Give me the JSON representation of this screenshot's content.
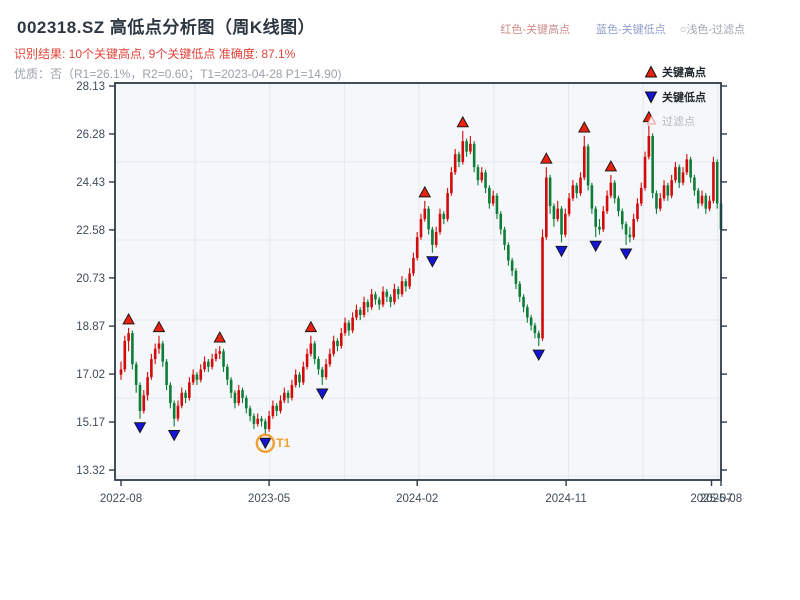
{
  "header": {
    "title": "002318.SZ 高低点分析图（周K线图）",
    "result_line": "识别结果: 10个关键高点, 9个关键低点  准确度: 87.1%",
    "quality_line": "优质：否（R1=26.1%，R2=0.60；T1=2023-04-28 P1=14.90)"
  },
  "top_legend": {
    "high_label": "红色-关键高点",
    "low_label": "蓝色-关键低点",
    "filter_label": "○浅色-过滤点"
  },
  "chart_legend": {
    "high": "关键高点",
    "low": "关键低点",
    "filter": "过滤点"
  },
  "annotation": {
    "t1_label": "T1"
  },
  "colors": {
    "up_candle": "#d20a0a",
    "down_candle": "#0d7d38",
    "key_high_marker": "#e8220f",
    "key_low_marker": "#1414d2",
    "filter_marker_fill": "#fdf0ef",
    "filter_marker_edge": "#e8a0a0",
    "annotation_orange": "#f0a030",
    "axis": "#2e3b49",
    "grid": "#e4e8ed",
    "plot_bg": "#f5f7fa",
    "tick_label": "#3f4c59"
  },
  "chart_data": {
    "type": "candlestick",
    "title": "002318.SZ 高低点分析图（周K线图）",
    "frequency": "weekly",
    "x_start": "2022-08",
    "x_end": "2025-08",
    "ylim": [
      13.32,
      28.13
    ],
    "y_ticks": [
      28.13,
      26.28,
      24.43,
      22.58,
      20.73,
      18.87,
      17.02,
      15.17,
      13.32
    ],
    "x_ticks": [
      {
        "label": "2022-08",
        "week": 0
      },
      {
        "label": "2023-05",
        "week": 39
      },
      {
        "label": "2024-02",
        "week": 78
      },
      {
        "label": "2024-11",
        "week": 117.2
      },
      {
        "label": "2025-07",
        "week": 155.5
      },
      {
        "label": "2025-08",
        "week": 158
      }
    ],
    "ohlc": [
      [
        17.0,
        17.5,
        16.8,
        17.2
      ],
      [
        17.2,
        18.5,
        17.1,
        18.3
      ],
      [
        18.3,
        18.8,
        17.9,
        18.6
      ],
      [
        18.6,
        18.7,
        17.2,
        17.4
      ],
      [
        17.4,
        17.5,
        16.3,
        16.6
      ],
      [
        16.6,
        16.7,
        15.3,
        15.6
      ],
      [
        15.6,
        16.4,
        15.5,
        16.2
      ],
      [
        16.2,
        17.1,
        16.0,
        16.9
      ],
      [
        16.9,
        17.8,
        16.8,
        17.6
      ],
      [
        17.6,
        18.2,
        17.4,
        18.0
      ],
      [
        18.0,
        18.5,
        17.8,
        18.2
      ],
      [
        18.2,
        18.3,
        17.3,
        17.5
      ],
      [
        17.5,
        17.6,
        16.4,
        16.6
      ],
      [
        16.6,
        16.7,
        15.7,
        15.9
      ],
      [
        15.9,
        16.0,
        15.0,
        15.3
      ],
      [
        15.3,
        16.0,
        15.2,
        15.8
      ],
      [
        15.8,
        16.5,
        15.7,
        16.3
      ],
      [
        16.3,
        16.4,
        15.9,
        16.1
      ],
      [
        16.1,
        16.9,
        16.0,
        16.7
      ],
      [
        16.7,
        17.2,
        16.6,
        17.0
      ],
      [
        17.0,
        17.1,
        16.6,
        16.8
      ],
      [
        16.8,
        17.4,
        16.7,
        17.2
      ],
      [
        17.2,
        17.7,
        17.1,
        17.5
      ],
      [
        17.5,
        17.6,
        17.1,
        17.3
      ],
      [
        17.3,
        17.8,
        17.2,
        17.6
      ],
      [
        17.6,
        18.0,
        17.5,
        17.8
      ],
      [
        17.8,
        18.1,
        17.6,
        17.9
      ],
      [
        17.9,
        18.0,
        17.1,
        17.3
      ],
      [
        17.3,
        17.4,
        16.6,
        16.8
      ],
      [
        16.8,
        16.9,
        16.1,
        16.3
      ],
      [
        16.3,
        16.4,
        15.7,
        15.9
      ],
      [
        15.9,
        16.6,
        15.8,
        16.4
      ],
      [
        16.4,
        16.5,
        15.9,
        16.1
      ],
      [
        16.1,
        16.2,
        15.5,
        15.7
      ],
      [
        15.7,
        15.8,
        15.2,
        15.4
      ],
      [
        15.4,
        15.5,
        14.9,
        15.1
      ],
      [
        15.1,
        15.5,
        15.0,
        15.3
      ],
      [
        15.3,
        15.4,
        15.0,
        15.2
      ],
      [
        15.2,
        15.3,
        14.7,
        14.9
      ],
      [
        14.9,
        15.6,
        14.8,
        15.4
      ],
      [
        15.4,
        16.0,
        15.3,
        15.8
      ],
      [
        15.8,
        15.9,
        15.4,
        15.6
      ],
      [
        15.6,
        16.2,
        15.5,
        16.0
      ],
      [
        16.0,
        16.5,
        15.9,
        16.3
      ],
      [
        16.3,
        16.4,
        15.9,
        16.1
      ],
      [
        16.1,
        16.8,
        16.0,
        16.6
      ],
      [
        16.6,
        17.2,
        16.5,
        17.0
      ],
      [
        17.0,
        17.1,
        16.5,
        16.7
      ],
      [
        16.7,
        17.5,
        16.6,
        17.3
      ],
      [
        17.3,
        18.0,
        17.2,
        17.8
      ],
      [
        17.8,
        18.5,
        17.7,
        18.2
      ],
      [
        18.2,
        18.3,
        17.4,
        17.6
      ],
      [
        17.6,
        17.7,
        17.0,
        17.2
      ],
      [
        17.2,
        17.3,
        16.6,
        16.9
      ],
      [
        16.9,
        17.6,
        16.8,
        17.4
      ],
      [
        17.4,
        18.0,
        17.3,
        17.8
      ],
      [
        17.8,
        18.5,
        17.7,
        18.3
      ],
      [
        18.3,
        18.4,
        17.9,
        18.1
      ],
      [
        18.1,
        18.8,
        18.0,
        18.6
      ],
      [
        18.6,
        19.2,
        18.5,
        19.0
      ],
      [
        19.0,
        19.1,
        18.5,
        18.7
      ],
      [
        18.7,
        19.4,
        18.6,
        19.2
      ],
      [
        19.2,
        19.7,
        19.1,
        19.5
      ],
      [
        19.5,
        19.6,
        19.1,
        19.3
      ],
      [
        19.3,
        20.0,
        19.2,
        19.8
      ],
      [
        19.8,
        19.9,
        19.4,
        19.6
      ],
      [
        19.6,
        20.3,
        19.5,
        20.1
      ],
      [
        20.1,
        20.2,
        19.7,
        19.9
      ],
      [
        19.9,
        20.0,
        19.5,
        19.7
      ],
      [
        19.7,
        20.4,
        19.6,
        20.2
      ],
      [
        20.2,
        20.3,
        19.8,
        20.0
      ],
      [
        20.0,
        20.1,
        19.6,
        19.8
      ],
      [
        19.8,
        20.5,
        19.7,
        20.3
      ],
      [
        20.3,
        20.4,
        19.9,
        20.1
      ],
      [
        20.1,
        20.8,
        20.0,
        20.6
      ],
      [
        20.6,
        20.7,
        20.2,
        20.4
      ],
      [
        20.4,
        21.1,
        20.3,
        20.9
      ],
      [
        20.9,
        21.7,
        20.8,
        21.5
      ],
      [
        21.5,
        22.5,
        21.4,
        22.3
      ],
      [
        22.3,
        23.2,
        22.2,
        23.0
      ],
      [
        23.0,
        23.7,
        22.9,
        23.4
      ],
      [
        23.4,
        23.5,
        22.4,
        22.6
      ],
      [
        22.6,
        22.7,
        21.7,
        22.0
      ],
      [
        22.0,
        22.7,
        21.9,
        22.5
      ],
      [
        22.5,
        23.4,
        22.4,
        23.2
      ],
      [
        23.2,
        23.3,
        22.8,
        23.0
      ],
      [
        23.0,
        24.2,
        22.9,
        24.0
      ],
      [
        24.0,
        25.0,
        23.9,
        24.8
      ],
      [
        24.8,
        25.7,
        24.7,
        25.5
      ],
      [
        25.5,
        25.6,
        25.0,
        25.2
      ],
      [
        25.2,
        26.4,
        25.1,
        26.0
      ],
      [
        26.0,
        26.1,
        25.4,
        25.6
      ],
      [
        25.6,
        26.2,
        25.5,
        25.9
      ],
      [
        25.9,
        26.0,
        24.8,
        25.0
      ],
      [
        25.0,
        25.1,
        24.3,
        24.5
      ],
      [
        24.5,
        25.0,
        24.4,
        24.8
      ],
      [
        24.8,
        24.9,
        24.0,
        24.2
      ],
      [
        24.2,
        24.3,
        23.4,
        23.6
      ],
      [
        23.6,
        24.1,
        23.5,
        23.9
      ],
      [
        23.9,
        24.0,
        23.0,
        23.2
      ],
      [
        23.2,
        23.3,
        22.4,
        22.6
      ],
      [
        22.6,
        22.7,
        21.8,
        22.0
      ],
      [
        22.0,
        22.1,
        21.2,
        21.4
      ],
      [
        21.4,
        21.5,
        20.8,
        21.0
      ],
      [
        21.0,
        21.1,
        20.3,
        20.5
      ],
      [
        20.5,
        20.6,
        19.8,
        20.0
      ],
      [
        20.0,
        20.1,
        19.4,
        19.6
      ],
      [
        19.6,
        19.7,
        19.0,
        19.2
      ],
      [
        19.2,
        19.3,
        18.7,
        18.9
      ],
      [
        18.9,
        19.0,
        18.4,
        18.6
      ],
      [
        18.6,
        18.7,
        18.1,
        18.4
      ],
      [
        18.4,
        22.6,
        18.3,
        22.3
      ],
      [
        22.3,
        25.0,
        22.2,
        24.6
      ],
      [
        24.6,
        24.7,
        23.2,
        23.5
      ],
      [
        23.5,
        23.6,
        22.7,
        23.0
      ],
      [
        23.0,
        23.7,
        22.9,
        23.4
      ],
      [
        23.4,
        23.5,
        22.1,
        22.4
      ],
      [
        22.4,
        23.4,
        22.3,
        23.2
      ],
      [
        23.2,
        24.0,
        23.1,
        23.8
      ],
      [
        23.8,
        24.5,
        23.7,
        24.3
      ],
      [
        24.3,
        24.4,
        23.8,
        24.0
      ],
      [
        24.0,
        24.8,
        23.9,
        24.6
      ],
      [
        24.6,
        26.2,
        24.5,
        25.8
      ],
      [
        25.8,
        25.9,
        24.1,
        24.3
      ],
      [
        24.3,
        24.4,
        23.2,
        23.4
      ],
      [
        23.4,
        23.5,
        22.3,
        22.7
      ],
      [
        22.7,
        23.0,
        22.4,
        22.6
      ],
      [
        22.6,
        23.5,
        22.5,
        23.3
      ],
      [
        23.3,
        24.1,
        23.2,
        23.9
      ],
      [
        23.9,
        24.7,
        23.8,
        24.4
      ],
      [
        24.4,
        24.5,
        23.6,
        23.8
      ],
      [
        23.8,
        23.9,
        23.1,
        23.3
      ],
      [
        23.3,
        23.4,
        22.6,
        22.8
      ],
      [
        22.8,
        22.9,
        22.0,
        22.4
      ],
      [
        22.4,
        22.7,
        22.1,
        22.3
      ],
      [
        22.3,
        23.2,
        22.2,
        23.0
      ],
      [
        23.0,
        23.8,
        22.9,
        23.6
      ],
      [
        23.6,
        24.4,
        23.5,
        24.2
      ],
      [
        24.2,
        25.6,
        24.1,
        25.4
      ],
      [
        25.4,
        26.6,
        25.3,
        26.2
      ],
      [
        26.2,
        26.3,
        23.8,
        24.0
      ],
      [
        24.0,
        24.1,
        23.2,
        23.4
      ],
      [
        23.4,
        24.0,
        23.3,
        23.8
      ],
      [
        23.8,
        24.5,
        23.7,
        24.3
      ],
      [
        24.3,
        24.4,
        23.7,
        23.9
      ],
      [
        23.9,
        24.7,
        23.8,
        24.5
      ],
      [
        24.5,
        25.2,
        24.4,
        25.0
      ],
      [
        25.0,
        25.1,
        24.2,
        24.4
      ],
      [
        24.4,
        25.0,
        24.3,
        24.8
      ],
      [
        24.8,
        25.5,
        24.7,
        25.3
      ],
      [
        25.3,
        25.4,
        24.4,
        24.6
      ],
      [
        24.6,
        24.7,
        23.9,
        24.1
      ],
      [
        24.1,
        24.2,
        23.4,
        23.6
      ],
      [
        23.6,
        24.1,
        23.5,
        23.9
      ],
      [
        23.9,
        24.0,
        23.2,
        23.4
      ],
      [
        23.4,
        23.9,
        23.3,
        23.7
      ],
      [
        23.7,
        25.4,
        23.6,
        25.2
      ],
      [
        25.2,
        25.3,
        23.4,
        23.6
      ],
      [
        23.6,
        23.7,
        22.2,
        22.6
      ]
    ],
    "key_highs": [
      {
        "week": 2,
        "price": 18.8
      },
      {
        "week": 10,
        "price": 18.5
      },
      {
        "week": 26,
        "price": 18.1
      },
      {
        "week": 50,
        "price": 18.5
      },
      {
        "week": 80,
        "price": 23.7
      },
      {
        "week": 90,
        "price": 26.4
      },
      {
        "week": 112,
        "price": 25.0
      },
      {
        "week": 122,
        "price": 26.2
      },
      {
        "week": 129,
        "price": 24.7
      },
      {
        "week": 139,
        "price": 26.6
      }
    ],
    "key_lows": [
      {
        "week": 5,
        "price": 15.3
      },
      {
        "week": 14,
        "price": 15.0
      },
      {
        "week": 38,
        "price": 14.7
      },
      {
        "week": 53,
        "price": 16.6
      },
      {
        "week": 82,
        "price": 21.7
      },
      {
        "week": 110,
        "price": 18.1
      },
      {
        "week": 116,
        "price": 22.1
      },
      {
        "week": 125,
        "price": 22.3
      },
      {
        "week": 133,
        "price": 22.0
      }
    ],
    "t1_point": {
      "week": 38,
      "price": 14.7,
      "date": "2023-04-28",
      "p1": 14.9
    }
  }
}
